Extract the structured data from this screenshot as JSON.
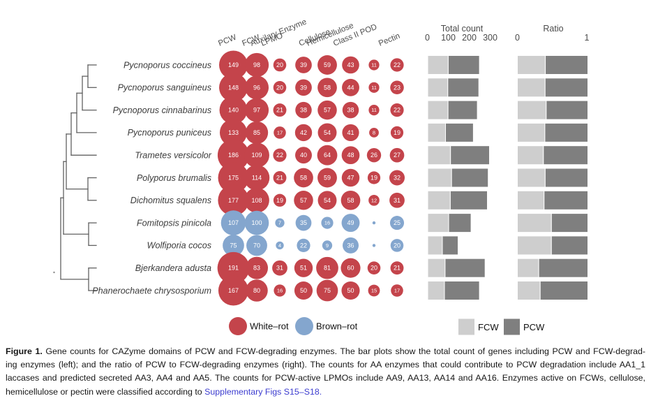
{
  "chart_data": {
    "type": "bubble",
    "description": "Bubble matrix of gene counts per species with two stacked horizontal bar plots (Total count, Ratio) derived from PCW and FCW counts",
    "bubble_columns": [
      "PCW",
      "FCW",
      "LPMO",
      "Auxilary Enzyme",
      "Cellulose",
      "Hemicellulose",
      "Class II POD",
      "Pectin"
    ],
    "rows": [
      {
        "species": "Pycnoporus coccineus",
        "rot": "white-rot",
        "counts": [
          149,
          98,
          20,
          39,
          59,
          43,
          11,
          22
        ]
      },
      {
        "species": "Pycnoporus sanguineus",
        "rot": "white-rot",
        "counts": [
          148,
          96,
          20,
          39,
          58,
          44,
          11,
          23
        ]
      },
      {
        "species": "Pycnoporus cinnabarinus",
        "rot": "white-rot",
        "counts": [
          140,
          97,
          21,
          38,
          57,
          38,
          11,
          22
        ]
      },
      {
        "species": "Pycnoporus puniceus",
        "rot": "white-rot",
        "counts": [
          133,
          85,
          17,
          42,
          54,
          41,
          8,
          19
        ]
      },
      {
        "species": "Trametes versicolor",
        "rot": "white-rot",
        "counts": [
          186,
          109,
          22,
          40,
          64,
          48,
          26,
          27
        ]
      },
      {
        "species": "Polyporus brumalis",
        "rot": "white-rot",
        "counts": [
          175,
          114,
          21,
          58,
          59,
          47,
          19,
          32
        ]
      },
      {
        "species": "Dichomitus squalens",
        "rot": "white-rot",
        "counts": [
          177,
          108,
          19,
          57,
          54,
          58,
          12,
          31
        ]
      },
      {
        "species": "Fomitopsis pinicola",
        "rot": "brown-rot",
        "counts": [
          107,
          100,
          7,
          35,
          16,
          49,
          null,
          25
        ]
      },
      {
        "species": "Wolfiporia cocos",
        "rot": "brown-rot",
        "counts": [
          75,
          70,
          4,
          22,
          9,
          36,
          null,
          20
        ]
      },
      {
        "species": "Bjerkandera adusta",
        "rot": "white-rot",
        "counts": [
          191,
          83,
          31,
          51,
          81,
          60,
          20,
          21
        ]
      },
      {
        "species": "Phanerochaete chrysosporium",
        "rot": "white-rot",
        "counts": [
          167,
          80,
          16,
          50,
          75,
          50,
          15,
          17
        ]
      }
    ],
    "bar_plots": [
      {
        "title": "Total count",
        "ticks": [
          "0",
          "100",
          "200",
          "300"
        ],
        "axis_max": 300,
        "stack_order": [
          "FCW",
          "PCW"
        ],
        "value": "FCW + PCW gene counts"
      },
      {
        "title": "Ratio",
        "ticks": [
          "0",
          "1"
        ],
        "axis_max": 1,
        "stack_order": [
          "FCW",
          "PCW"
        ],
        "value": "share of FCW vs PCW of total"
      }
    ]
  },
  "legend": {
    "rot_types": [
      {
        "label": "White–rot",
        "color": "#c4444b"
      },
      {
        "label": "Brown–rot",
        "color": "#84a6ce"
      }
    ],
    "wall_types": [
      {
        "label": "FCW",
        "color": "#cecece"
      },
      {
        "label": "PCW",
        "color": "#7f7f7f"
      }
    ]
  },
  "colors": {
    "white_rot": "#c4444b",
    "brown_rot": "#84a6ce",
    "fcw": "#cecece",
    "pcw": "#7f7f7f",
    "tree": "#616161",
    "axis_text": "#4a4a4a",
    "link": "#3c3ccf"
  },
  "caption": {
    "label": "Figure 1.",
    "line1_rest": " Gene counts for CAZyme domains of PCW and FCW-degrading enzymes. The bar plots show the total count of genes including PCW and FCW-degrad-",
    "line2": "ing enzymes (left); and the ratio of PCW to FCW-degrading enzymes (right). The counts for AA enzymes that could contribute to PCW degradation include AA1_1",
    "line3": "laccases and predicted secreted AA3, AA4 and AA5. The counts for PCW-active LPMOs include AA9, AA13, AA14 and AA16. Enzymes active on FCWs, cellulose,",
    "line4": "hemicellulose or pectin were classified according to ",
    "link": "Supplementary Figs S15–S18."
  }
}
